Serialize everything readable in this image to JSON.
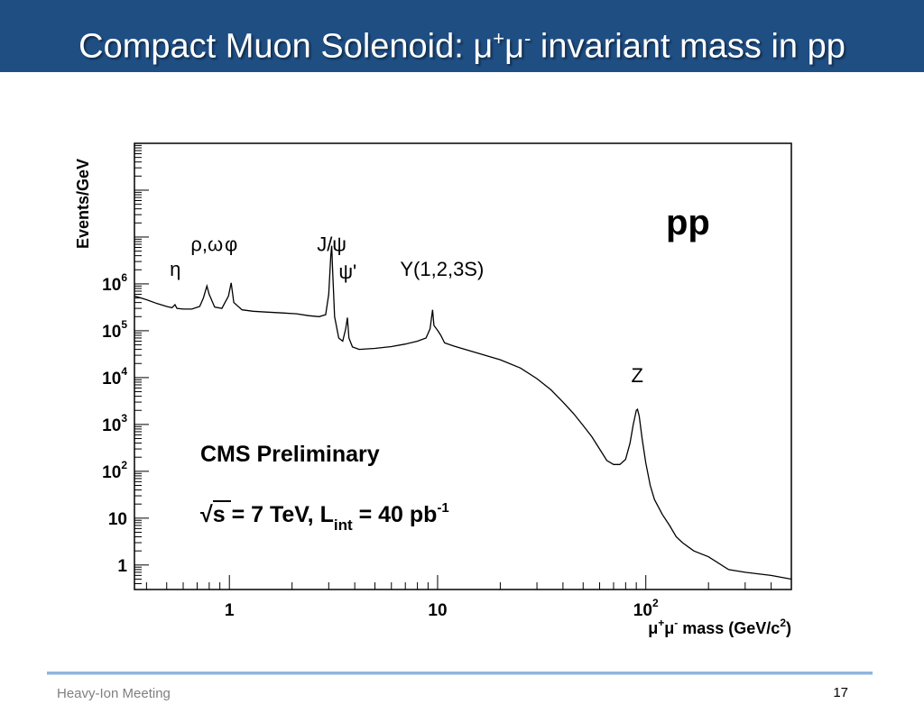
{
  "slide": {
    "title_prefix": "Compact Muon Solenoid: ",
    "title_mu1": "μ",
    "title_sup1": "+",
    "title_mu2": "μ",
    "title_sup2": "-",
    "title_suffix": " invariant mass in pp",
    "footer_text": "Heavy-Ion Meeting",
    "page_number": "17",
    "title_bar_color": "#1f4e83"
  },
  "chart_data": {
    "type": "line",
    "x_scale": "log",
    "y_scale": "log",
    "xlim": [
      0.35,
      500
    ],
    "ylim": [
      0.3,
      1000000000
    ],
    "ylabel": "Events/GeV",
    "xlabel_parts": [
      "μ",
      "+",
      "μ",
      "-",
      " mass (GeV/c",
      "2",
      ")"
    ],
    "x_ticks": [
      {
        "value": 1,
        "label": "1"
      },
      {
        "value": 10,
        "label": "10"
      },
      {
        "value": 100,
        "label": "10",
        "sup": "2"
      }
    ],
    "y_ticks": [
      {
        "value": 1,
        "label": "1"
      },
      {
        "value": 10,
        "label": "10"
      },
      {
        "value": 100,
        "label": "10",
        "sup": "2"
      },
      {
        "value": 1000,
        "label": "10",
        "sup": "3"
      },
      {
        "value": 10000,
        "label": "10",
        "sup": "4"
      },
      {
        "value": 100000,
        "label": "10",
        "sup": "5"
      },
      {
        "value": 1000000,
        "label": "10",
        "sup": "6"
      }
    ],
    "peak_labels": [
      {
        "text": "η",
        "x": 0.55,
        "y": 1500000
      },
      {
        "text": "ρ,ω",
        "x": 0.78,
        "y": 5000000
      },
      {
        "text": "φ",
        "x": 1.02,
        "y": 5000000
      },
      {
        "text": "J/ψ",
        "x": 3.1,
        "y": 5000000
      },
      {
        "text": "ψ'",
        "x": 3.7,
        "y": 1300000
      },
      {
        "text": "Υ(1,2,3S)",
        "x": 10.5,
        "y": 1500000
      },
      {
        "text": "Z",
        "x": 91,
        "y": 8000
      }
    ],
    "annotations": {
      "pp": "pp",
      "cms": "CMS Preliminary",
      "sqrt": "√",
      "energy": "s = 7 TeV,  L",
      "int_sub": "int",
      "lumi": " = 40 pb",
      "lumi_sup": "-1"
    },
    "series": [
      {
        "points": [
          [
            0.35,
            550000
          ],
          [
            0.4,
            460000
          ],
          [
            0.45,
            380000
          ],
          [
            0.5,
            330000
          ],
          [
            0.53,
            310000
          ],
          [
            0.548,
            360000
          ],
          [
            0.56,
            300000
          ],
          [
            0.6,
            290000
          ],
          [
            0.66,
            290000
          ],
          [
            0.72,
            330000
          ],
          [
            0.75,
            500000
          ],
          [
            0.78,
            900000
          ],
          [
            0.8,
            600000
          ],
          [
            0.85,
            320000
          ],
          [
            0.92,
            300000
          ],
          [
            0.99,
            550000
          ],
          [
            1.02,
            1050000
          ],
          [
            1.05,
            400000
          ],
          [
            1.15,
            280000
          ],
          [
            1.3,
            260000
          ],
          [
            1.5,
            250000
          ],
          [
            1.8,
            240000
          ],
          [
            2.1,
            230000
          ],
          [
            2.4,
            210000
          ],
          [
            2.7,
            200000
          ],
          [
            2.9,
            220000
          ],
          [
            3.0,
            600000
          ],
          [
            3.07,
            4000000
          ],
          [
            3.1,
            6500000
          ],
          [
            3.13,
            2000000
          ],
          [
            3.2,
            200000
          ],
          [
            3.35,
            70000
          ],
          [
            3.5,
            60000
          ],
          [
            3.62,
            110000
          ],
          [
            3.69,
            190000
          ],
          [
            3.75,
            70000
          ],
          [
            3.9,
            45000
          ],
          [
            4.2,
            40000
          ],
          [
            5,
            42000
          ],
          [
            6,
            46000
          ],
          [
            7,
            52000
          ],
          [
            8,
            60000
          ],
          [
            8.8,
            70000
          ],
          [
            9.2,
            110000
          ],
          [
            9.46,
            280000
          ],
          [
            9.6,
            130000
          ],
          [
            10.02,
            100000
          ],
          [
            10.36,
            80000
          ],
          [
            10.8,
            55000
          ],
          [
            12,
            47000
          ],
          [
            15,
            35000
          ],
          [
            20,
            24000
          ],
          [
            25,
            16000
          ],
          [
            30,
            9500
          ],
          [
            35,
            5500
          ],
          [
            40,
            3000
          ],
          [
            45,
            1700
          ],
          [
            50,
            950
          ],
          [
            55,
            550
          ],
          [
            60,
            300
          ],
          [
            65,
            170
          ],
          [
            70,
            140
          ],
          [
            75,
            140
          ],
          [
            80,
            180
          ],
          [
            84,
            400
          ],
          [
            87,
            1000
          ],
          [
            90,
            2000
          ],
          [
            91.2,
            2100
          ],
          [
            93,
            1500
          ],
          [
            96,
            500
          ],
          [
            100,
            150
          ],
          [
            105,
            50
          ],
          [
            110,
            25
          ],
          [
            120,
            12
          ],
          [
            130,
            7
          ],
          [
            140,
            4
          ],
          [
            150,
            3
          ],
          [
            170,
            2
          ],
          [
            200,
            1.5
          ],
          [
            250,
            0.8
          ],
          [
            300,
            0.7
          ],
          [
            400,
            0.6
          ],
          [
            500,
            0.5
          ]
        ]
      }
    ]
  }
}
